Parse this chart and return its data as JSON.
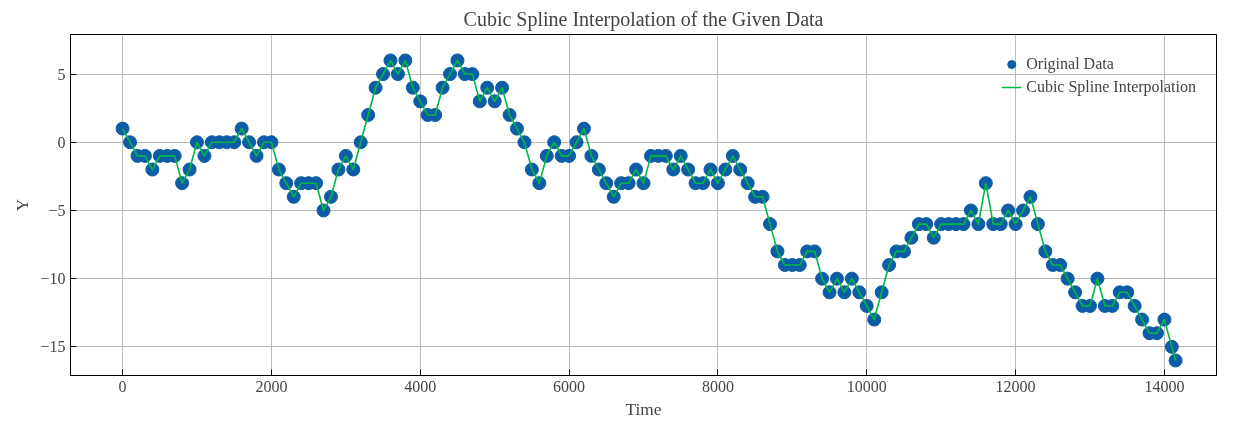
{
  "chart_data": {
    "type": "scatter",
    "title": "Cubic Spline Interpolation of the Given Data",
    "xlabel": "Time",
    "ylabel": "Y",
    "x": [
      0,
      100,
      200,
      300,
      400,
      500,
      600,
      700,
      800,
      900,
      1000,
      1100,
      1200,
      1300,
      1400,
      1500,
      1600,
      1700,
      1800,
      1900,
      2000,
      2100,
      2200,
      2300,
      2400,
      2500,
      2600,
      2700,
      2800,
      2900,
      3000,
      3100,
      3200,
      3300,
      3400,
      3500,
      3600,
      3700,
      3800,
      3900,
      4000,
      4100,
      4200,
      4300,
      4400,
      4500,
      4600,
      4700,
      4800,
      4900,
      5000,
      5100,
      5200,
      5300,
      5400,
      5500,
      5600,
      5700,
      5800,
      5900,
      6000,
      6100,
      6200,
      6300,
      6400,
      6500,
      6600,
      6700,
      6800,
      6900,
      7000,
      7100,
      7200,
      7300,
      7400,
      7500,
      7600,
      7700,
      7800,
      7900,
      8000,
      8100,
      8200,
      8300,
      8400,
      8500,
      8600,
      8700,
      8800,
      8900,
      9000,
      9100,
      9200,
      9300,
      9400,
      9500,
      9600,
      9700,
      9800,
      9900,
      10000,
      10100,
      10200,
      10300,
      10400,
      10500,
      10600,
      10700,
      10800,
      10900,
      11000,
      11100,
      11200,
      11300,
      11400,
      11500,
      11600,
      11700,
      11800,
      11900,
      12000,
      12100,
      12200,
      12300,
      12400,
      12500,
      12600,
      12700,
      12800,
      12900,
      13000,
      13100,
      13200,
      13300,
      13400,
      13500,
      13600,
      13700,
      13800,
      13900,
      14000,
      14100,
      14150
    ],
    "series": [
      {
        "name": "Original Data",
        "marker": "circle",
        "color": "#0c5da5",
        "values": [
          1,
          0,
          -1,
          -1,
          -2,
          -1,
          -1,
          -1,
          -3,
          -2,
          0,
          -1,
          0,
          0,
          0,
          0,
          1,
          0,
          -1,
          0,
          0,
          -2,
          -3,
          -4,
          -3,
          -3,
          -3,
          -5,
          -4,
          -2,
          -1,
          -2,
          0,
          2,
          4,
          5,
          6,
          5,
          6,
          4,
          3,
          2,
          2,
          4,
          5,
          6,
          5,
          5,
          3,
          4,
          3,
          4,
          2,
          1,
          0,
          -2,
          -3,
          -1,
          0,
          -1,
          -1,
          0,
          1,
          -1,
          -2,
          -3,
          -4,
          -3,
          -3,
          -2,
          -3,
          -1,
          -1,
          -1,
          -2,
          -1,
          -2,
          -3,
          -3,
          -2,
          -3,
          -2,
          -1,
          -2,
          -3,
          -4,
          -4,
          -6,
          -8,
          -9,
          -9,
          -9,
          -8,
          -8,
          -10,
          -11,
          -10,
          -11,
          -10,
          -11,
          -12,
          -13,
          -11,
          -9,
          -8,
          -8,
          -7,
          -6,
          -6,
          -7,
          -6,
          -6,
          -6,
          -6,
          -5,
          -6,
          -3,
          -6,
          -6,
          -5,
          -6,
          -5,
          -4,
          -6,
          -8,
          -9,
          -9,
          -10,
          -11,
          -12,
          -12,
          -10,
          -12,
          -12,
          -11,
          -11,
          -12,
          -13,
          -14,
          -14,
          -13,
          -15,
          -16
        ]
      },
      {
        "name": "Cubic Spline Interpolation",
        "type": "line",
        "line_style": "solid",
        "color": "#00b945",
        "values": [
          1,
          0,
          -1,
          -1,
          -2,
          -1,
          -1,
          -1,
          -3,
          -2,
          0,
          -1,
          0,
          0,
          0,
          0,
          1,
          0,
          -1,
          0,
          0,
          -2,
          -3,
          -4,
          -3,
          -3,
          -3,
          -5,
          -4,
          -2,
          -1,
          -2,
          0,
          2,
          4,
          5,
          6,
          5,
          6,
          4,
          3,
          2,
          2,
          4,
          5,
          6,
          5,
          5,
          3,
          4,
          3,
          4,
          2,
          1,
          0,
          -2,
          -3,
          -1,
          0,
          -1,
          -1,
          0,
          1,
          -1,
          -2,
          -3,
          -4,
          -3,
          -3,
          -2,
          -3,
          -1,
          -1,
          -1,
          -2,
          -1,
          -2,
          -3,
          -3,
          -2,
          -3,
          -2,
          -1,
          -2,
          -3,
          -4,
          -4,
          -6,
          -8,
          -9,
          -9,
          -9,
          -8,
          -8,
          -10,
          -11,
          -10,
          -11,
          -10,
          -11,
          -12,
          -13,
          -11,
          -9,
          -8,
          -8,
          -7,
          -6,
          -6,
          -7,
          -6,
          -6,
          -6,
          -6,
          -5,
          -6,
          -3,
          -6,
          -6,
          -5,
          -6,
          -5,
          -4,
          -6,
          -8,
          -9,
          -9,
          -10,
          -11,
          -12,
          -12,
          -10,
          -12,
          -12,
          -11,
          -11,
          -12,
          -13,
          -14,
          -14,
          -13,
          -15,
          -16
        ]
      }
    ],
    "xlim": [
      -700,
      14700
    ],
    "ylim": [
      -17.1,
      7.9
    ],
    "xticks": [
      0,
      2000,
      4000,
      6000,
      8000,
      10000,
      12000,
      14000
    ],
    "yticks": [
      -15,
      -10,
      -5,
      0,
      5
    ],
    "grid": true,
    "legend": "top right"
  }
}
